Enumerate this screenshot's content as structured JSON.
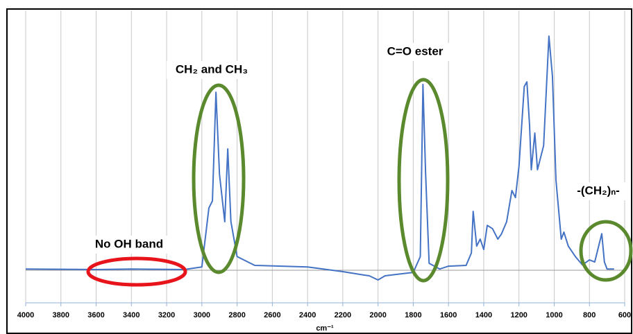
{
  "chart_data": {
    "type": "line",
    "xlabel": "cm⁻¹",
    "annotations": [
      "No OH band",
      "CH₂ and CH₃",
      "C=O ester",
      "-(CH₂)ₙ-"
    ],
    "x": [
      4000,
      3600,
      3400,
      3100,
      3000,
      2960,
      2940,
      2920,
      2900,
      2870,
      2853,
      2835,
      2800,
      2700,
      2400,
      2200,
      2100,
      2050,
      2000,
      1960,
      1900,
      1800,
      1760,
      1745,
      1730,
      1710,
      1650,
      1600,
      1500,
      1470,
      1460,
      1440,
      1420,
      1400,
      1380,
      1350,
      1320,
      1300,
      1270,
      1240,
      1220,
      1200,
      1170,
      1155,
      1140,
      1130,
      1110,
      1095,
      1060,
      1030,
      1010,
      990,
      960,
      945,
      920,
      880,
      840,
      800,
      770,
      730,
      715,
      700,
      660
    ],
    "series": [
      {
        "color": "#4472c4",
        "values": [
          0.5,
          0.3,
          0.5,
          0.3,
          1.3,
          24,
          26.7,
          68.5,
          37,
          18.7,
          46.7,
          18.7,
          5.3,
          1.9,
          1.3,
          -0.5,
          -1.6,
          -2.1,
          -3.7,
          -2.1,
          -1.6,
          -0.8,
          5.3,
          71.5,
          37.3,
          2.7,
          0.5,
          1.6,
          1.9,
          6.7,
          22.7,
          9.3,
          12,
          8,
          17.3,
          16,
          12,
          13.9,
          18.7,
          30.7,
          28,
          40,
          70.7,
          72.5,
          56,
          38.7,
          52.8,
          38.7,
          48,
          90.1,
          74.7,
          34.7,
          12,
          14.7,
          9.3,
          5.3,
          2.1,
          4,
          3.2,
          14.1,
          3.2,
          0.5,
          0.5
        ]
      }
    ],
    "xlim": [
      4000,
      600
    ],
    "xticks": [
      4000,
      3800,
      3600,
      3400,
      3200,
      3000,
      2800,
      2600,
      2400,
      2200,
      2000,
      1800,
      1600,
      1400,
      1200,
      1000,
      800,
      600
    ],
    "ylim": [
      -12.5,
      100
    ],
    "grid": true
  }
}
